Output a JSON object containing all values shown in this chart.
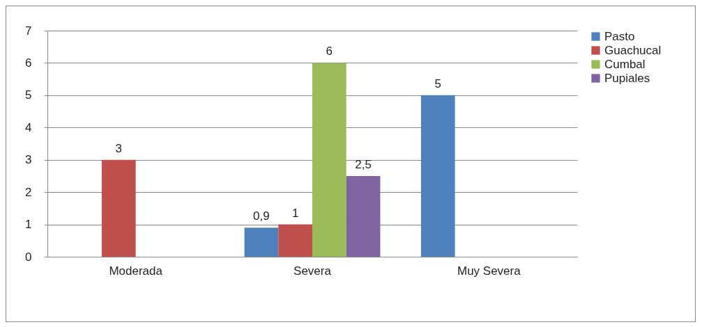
{
  "chart_data": {
    "type": "bar",
    "categories": [
      "Moderada",
      "Severa",
      "Muy Severa"
    ],
    "series": [
      {
        "name": "Pasto",
        "color": "#4f81bd",
        "values": [
          null,
          0.9,
          5
        ],
        "value_labels": [
          null,
          "0,9",
          "5"
        ]
      },
      {
        "name": "Guachucal",
        "color": "#c0504d",
        "values": [
          3,
          1,
          null
        ],
        "value_labels": [
          "3",
          "1",
          null
        ]
      },
      {
        "name": "Cumbal",
        "color": "#9bbb59",
        "values": [
          null,
          6,
          null
        ],
        "value_labels": [
          null,
          "6",
          null
        ]
      },
      {
        "name": "Pupiales",
        "color": "#8064a2",
        "values": [
          null,
          2.5,
          null
        ],
        "value_labels": [
          null,
          "2,5",
          null
        ]
      }
    ],
    "ylim": [
      0,
      7
    ],
    "yticks": [
      0,
      1,
      2,
      3,
      4,
      5,
      6,
      7
    ],
    "grid": "y",
    "legend": "right"
  }
}
